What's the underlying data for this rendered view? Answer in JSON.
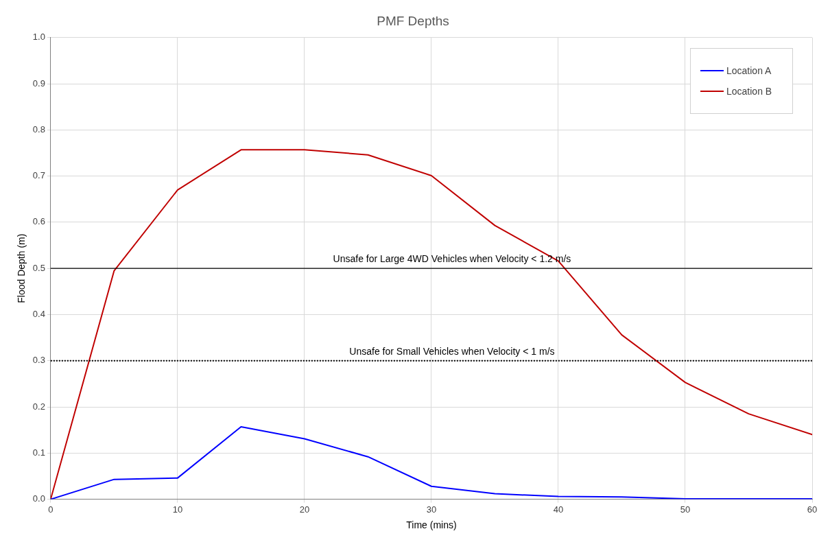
{
  "chart_data": {
    "type": "line",
    "title": "PMF Depths",
    "xlabel": "Time (mins)",
    "ylabel": "Flood Depth (m)",
    "x": [
      0,
      5,
      10,
      15,
      20,
      25,
      30,
      35,
      40,
      45,
      50,
      55,
      60
    ],
    "series": [
      {
        "name": "Location A",
        "color": "#0000ff",
        "values": [
          0,
          0.043,
          0.046,
          0.157,
          0.131,
          0.092,
          0.028,
          0.012,
          0.006,
          0.005,
          0.001,
          0.001,
          0.001
        ]
      },
      {
        "name": "Location B",
        "color": "#c00000",
        "values": [
          0,
          0.495,
          0.67,
          0.757,
          0.757,
          0.746,
          0.701,
          0.593,
          0.516,
          0.356,
          0.253,
          0.185,
          0.14
        ]
      }
    ],
    "xlim": [
      0,
      60
    ],
    "xticks": [
      0,
      10,
      20,
      30,
      40,
      50,
      60
    ],
    "ylim": [
      0,
      1
    ],
    "yticks": [
      {
        "value": 0,
        "label": "0.0"
      },
      {
        "value": 0.1,
        "label": "0.1"
      },
      {
        "value": 0.2,
        "label": "0.2"
      },
      {
        "value": 0.3,
        "label": "0.3"
      },
      {
        "value": 0.4,
        "label": "0.4"
      },
      {
        "value": 0.5,
        "label": "0.5"
      },
      {
        "value": 0.6,
        "label": "0.6"
      },
      {
        "value": 0.7,
        "label": "0.7"
      },
      {
        "value": 0.8,
        "label": "0.8"
      },
      {
        "value": 0.9,
        "label": "0.9"
      },
      {
        "value": 1,
        "label": "1.0"
      }
    ],
    "ref_lines": [
      {
        "axis": "y",
        "value": 0.5,
        "label": "Unsafe for Large 4WD Vehicles when Velocity < 1.2 m/s",
        "color": "#000000",
        "line_style": "solid"
      },
      {
        "axis": "y",
        "value": 0.3,
        "label": "Unsafe for Small Vehicles when Velocity < 1 m/s",
        "color": "#000000",
        "line_style": "dotted"
      }
    ],
    "grid": true,
    "legend": "top right",
    "marker": "none",
    "line_style": "solid"
  }
}
